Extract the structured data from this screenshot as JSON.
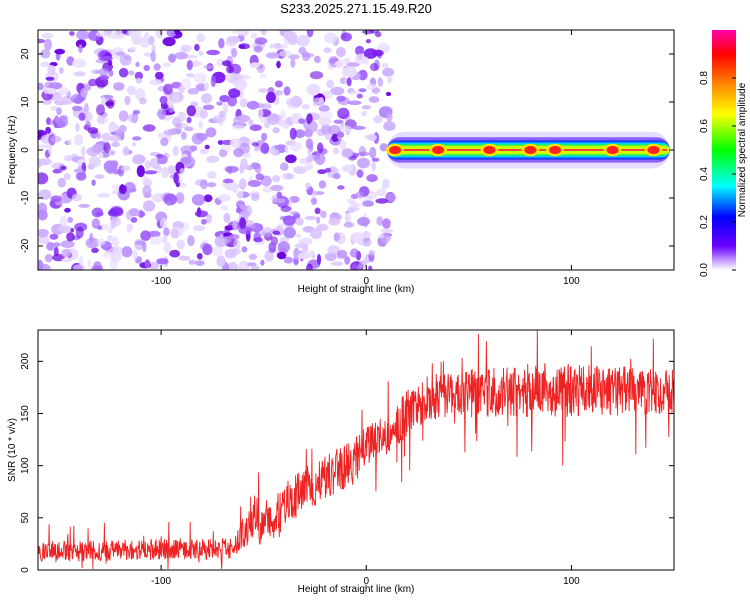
{
  "title": "S233.2025.271.15.49.R20",
  "chart_data": [
    {
      "type": "heatmap",
      "xlabel": "Height of straight line (km)",
      "ylabel": "Frequency (Hz)",
      "xlim": [
        -160,
        150
      ],
      "ylim": [
        -25,
        25
      ],
      "xticks": [
        -100,
        0,
        100
      ],
      "xtick_labels": [
        "-100",
        "0",
        "100"
      ],
      "yticks": [
        -20,
        -10,
        0,
        10,
        20
      ],
      "ytick_labels": [
        "-20",
        "-10",
        "0",
        "10",
        "20"
      ],
      "noise_region_x": [
        -160,
        12
      ],
      "signal_band": {
        "x_range": [
          10,
          148
        ],
        "center_frequency": 0,
        "halfwidth_hz": 1.2,
        "peaks": [
          {
            "x": 14,
            "amp": 0.95
          },
          {
            "x": 35,
            "amp": 0.9
          },
          {
            "x": 60,
            "amp": 0.92
          },
          {
            "x": 80,
            "amp": 0.95
          },
          {
            "x": 92,
            "amp": 0.95
          },
          {
            "x": 120,
            "amp": 0.9
          },
          {
            "x": 140,
            "amp": 0.85
          }
        ]
      },
      "colorbar": {
        "label": "Normalized spectral amplitude",
        "range": [
          0,
          1
        ],
        "ticks": [
          0.0,
          0.2,
          0.4,
          0.6,
          0.8
        ],
        "tick_labels": [
          "0.0",
          "0.2",
          "0.4",
          "0.6",
          "0.8"
        ],
        "colors": [
          "#ffffff",
          "#6a00ff",
          "#0000ff",
          "#00ffff",
          "#00ff00",
          "#ffff00",
          "#ff8000",
          "#ff0000",
          "#ff00aa"
        ]
      }
    },
    {
      "type": "line",
      "xlabel": "Height of straight line (km)",
      "ylabel": "SNR (10 * v/v)",
      "xlim": [
        -160,
        150
      ],
      "ylim": [
        0,
        230
      ],
      "xticks": [
        -100,
        0,
        100
      ],
      "xtick_labels": [
        "-100",
        "0",
        "100"
      ],
      "yticks": [
        0,
        50,
        100,
        150,
        200
      ],
      "ytick_labels": [
        "0",
        "50",
        "100",
        "150",
        "200"
      ],
      "series": [
        {
          "name": "SNR",
          "color": "#ee2222",
          "x": [
            -160,
            -140,
            -120,
            -100,
            -80,
            -65,
            -60,
            -55,
            -50,
            -45,
            -40,
            -35,
            -30,
            -25,
            -20,
            -15,
            -10,
            -5,
            0,
            5,
            10,
            15,
            20,
            25,
            30,
            40,
            50,
            60,
            70,
            80,
            90,
            100,
            110,
            120,
            130,
            140,
            150
          ],
          "values": [
            18,
            18,
            19,
            20,
            20,
            20,
            35,
            45,
            42,
            50,
            60,
            70,
            80,
            82,
            90,
            95,
            100,
            105,
            120,
            125,
            130,
            140,
            150,
            160,
            165,
            168,
            170,
            170,
            172,
            172,
            173,
            172,
            172,
            172,
            171,
            170,
            170
          ],
          "noise_amplitude": [
            10,
            10,
            10,
            10,
            10,
            10,
            15,
            18,
            18,
            20,
            22,
            22,
            22,
            22,
            22,
            22,
            22,
            22,
            20,
            20,
            20,
            22,
            22,
            22,
            22,
            22,
            24,
            24,
            24,
            26,
            26,
            26,
            24,
            24,
            24,
            22,
            22
          ]
        }
      ]
    }
  ]
}
